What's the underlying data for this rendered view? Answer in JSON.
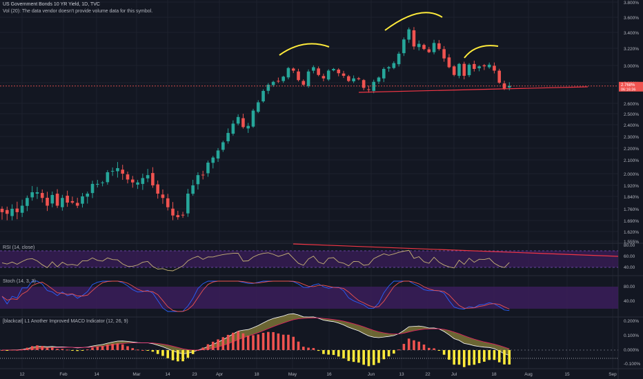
{
  "header": {
    "symbol_line": "US Government Bonds 10 YR Yield, 1D, TVC",
    "volume_note": "Vol (20): The data vendor doesn't provide volume data for this symbol."
  },
  "price_axis": {
    "ticks": [
      "3.800%",
      "3.600%",
      "3.400%",
      "3.220%",
      "3.000%",
      "2.800%",
      "2.600%",
      "2.500%",
      "2.400%",
      "2.300%",
      "2.200%",
      "2.100%",
      "2.000%",
      "1.920%",
      "1.840%",
      "1.760%",
      "1.690%",
      "1.620%",
      "1.555%"
    ],
    "last_price": "2.768%",
    "countdown": "06:16:36"
  },
  "time_axis": {
    "labels": [
      "12",
      "Feb",
      "14",
      "Mar",
      "14",
      "23",
      "Apr",
      "18",
      "May",
      "16",
      "Jun",
      "13",
      "22",
      "Jul",
      "18",
      "Aug",
      "15",
      "Sep"
    ]
  },
  "rsi": {
    "label": "RSI (14, close)",
    "ticks": [
      "80.00",
      "60.00",
      "40.00"
    ]
  },
  "stoch": {
    "label": "Stoch (14, 3, 3)",
    "ticks": [
      "80.00",
      "40.00"
    ]
  },
  "macd": {
    "label": "[blackcat] L1 Another Improved MACD Indicator (12, 26, 9)",
    "ticks": [
      "0.200%",
      "0.100%",
      "0.000%",
      "-0.100%"
    ]
  },
  "colors": {
    "background": "#131722",
    "up": "#26a69a",
    "down": "#ef5350",
    "trendline": "#f23645",
    "annotation": "#ffeb3b",
    "rsi_line": "#c7b376",
    "band_fill": "#3b1d5a",
    "stoch_k": "#2962ff",
    "stoch_d": "#ef5350",
    "macd_hist_pos": "#ef5350",
    "macd_hist_neg": "#ffeb3b",
    "macd_cloud": "#b5a642"
  },
  "chart_data": {
    "type": "candlestick",
    "interval": "1D",
    "start_label": "Jan 12",
    "last_close": 2.768,
    "closes": [
      1.74,
      1.73,
      1.76,
      1.74,
      1.78,
      1.83,
      1.87,
      1.87,
      1.83,
      1.78,
      1.85,
      1.78,
      1.83,
      1.8,
      1.8,
      1.78,
      1.84,
      1.86,
      1.93,
      1.93,
      1.94,
      2.01,
      2.02,
      2.04,
      2.0,
      1.96,
      1.94,
      1.94,
      1.97,
      1.99,
      1.92,
      1.86,
      1.83,
      1.77,
      1.72,
      1.71,
      1.72,
      1.86,
      1.92,
      1.99,
      1.99,
      2.08,
      2.12,
      2.18,
      2.25,
      2.33,
      2.41,
      2.47,
      2.38,
      2.39,
      2.53,
      2.61,
      2.72,
      2.78,
      2.81,
      2.82,
      2.87,
      2.97,
      2.94,
      2.83,
      2.78,
      2.93,
      2.98,
      2.89,
      2.85,
      2.94,
      2.96,
      2.91,
      2.88,
      2.82,
      2.85,
      2.84,
      2.75,
      2.73,
      2.81,
      2.86,
      2.96,
      2.98,
      3.03,
      3.15,
      3.32,
      3.44,
      3.24,
      3.27,
      3.21,
      3.17,
      3.28,
      3.21,
      3.09,
      2.98,
      2.89,
      3.02,
      2.88,
      3.01,
      2.96,
      2.99,
      2.99,
      3.01,
      2.94,
      2.8,
      2.74,
      2.77
    ]
  }
}
